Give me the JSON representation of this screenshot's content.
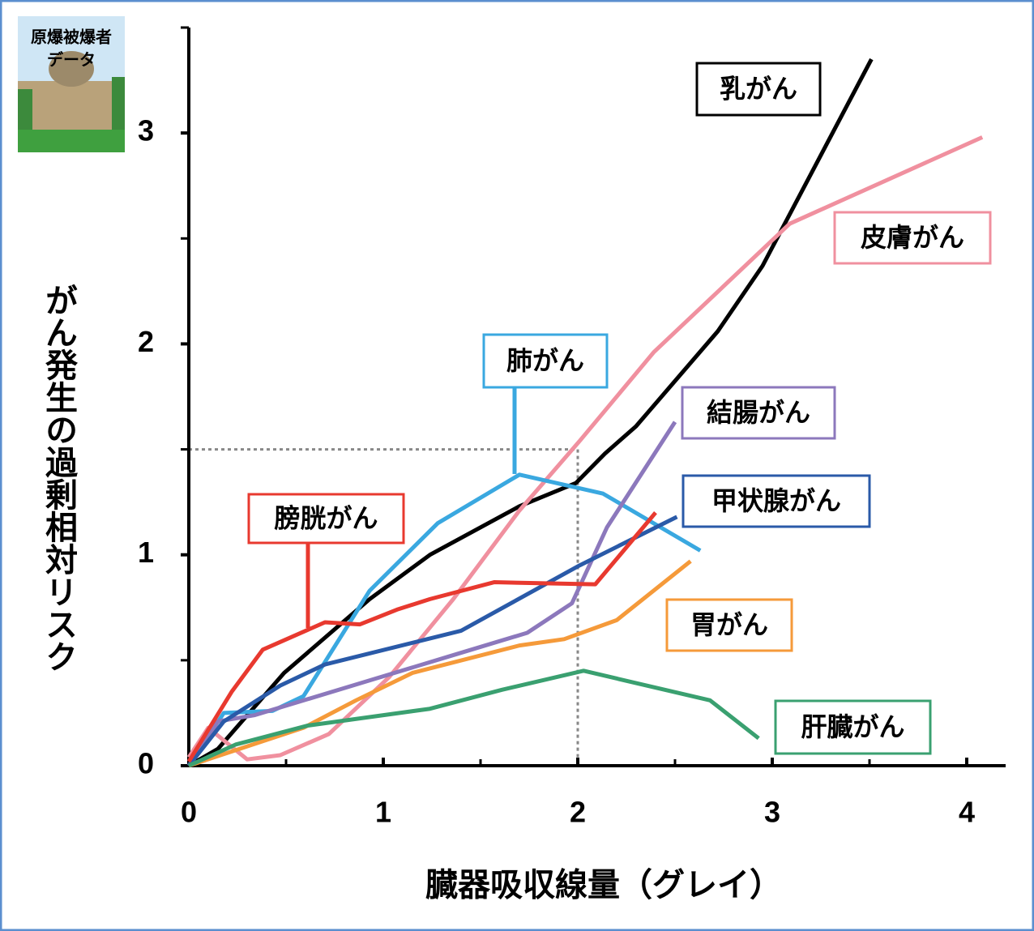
{
  "chart_data": {
    "type": "line",
    "badge": [
      "原爆被爆者",
      "データ"
    ],
    "xlabel": "臓器吸収線量（グレイ）",
    "ylabel": "がん発生の過剰相対リスク",
    "xlim": [
      0,
      4.2
    ],
    "ylim": [
      0,
      3.5
    ],
    "xticks": [
      0,
      1,
      2,
      3,
      4
    ],
    "yticks": [
      0,
      1,
      2,
      3
    ],
    "xminor": [
      0.5,
      1.5,
      2.5,
      3.5
    ],
    "yminor": [
      0.5,
      1.5,
      2.5,
      3.5
    ],
    "reference": {
      "x": 2,
      "y": 1.5
    },
    "series": [
      {
        "name": "乳がん",
        "color": "#000000",
        "x": [
          0,
          0.15,
          0.49,
          0.93,
          1.24,
          1.7,
          1.99,
          2.14,
          2.3,
          2.72,
          2.95,
          3.51
        ],
        "values": [
          0,
          0.08,
          0.44,
          0.79,
          1.0,
          1.23,
          1.34,
          1.48,
          1.61,
          2.06,
          2.37,
          3.35
        ]
      },
      {
        "name": "皮膚がん",
        "color": "#f0909f",
        "x": [
          0,
          0.1,
          0.3,
          0.47,
          0.72,
          1.03,
          1.36,
          1.7,
          2.01,
          2.39,
          3.09,
          4.08
        ],
        "values": [
          0.04,
          0.18,
          0.03,
          0.05,
          0.15,
          0.42,
          0.79,
          1.21,
          1.54,
          1.96,
          2.57,
          2.98
        ]
      },
      {
        "name": "肺がん",
        "color": "#3aa8e0",
        "x": [
          0,
          0.18,
          0.43,
          0.59,
          0.93,
          1.28,
          1.7,
          2.13,
          2.63
        ],
        "values": [
          0,
          0.25,
          0.26,
          0.33,
          0.83,
          1.15,
          1.38,
          1.29,
          1.02
        ]
      },
      {
        "name": "結腸がん",
        "color": "#8c78bc",
        "x": [
          0,
          0.15,
          0.34,
          0.95,
          1.38,
          1.74,
          1.97,
          2.15,
          2.5
        ],
        "values": [
          0,
          0.21,
          0.24,
          0.41,
          0.53,
          0.63,
          0.77,
          1.13,
          1.63
        ]
      },
      {
        "name": "甲状腺がん",
        "color": "#2a5aa8",
        "x": [
          0,
          0.18,
          0.47,
          0.7,
          1.4,
          2.01,
          2.51
        ],
        "values": [
          0,
          0.21,
          0.38,
          0.48,
          0.64,
          0.95,
          1.18
        ]
      },
      {
        "name": "膀胱がん",
        "color": "#e8392f",
        "x": [
          0,
          0.22,
          0.38,
          0.7,
          0.88,
          1.07,
          1.24,
          1.57,
          2.09,
          2.4
        ],
        "values": [
          0.02,
          0.35,
          0.55,
          0.68,
          0.67,
          0.74,
          0.79,
          0.87,
          0.86,
          1.2
        ]
      },
      {
        "name": "胃がん",
        "color": "#f59a3a",
        "x": [
          0,
          0.59,
          0.86,
          1.15,
          1.7,
          1.93,
          2.2,
          2.58
        ],
        "values": [
          0,
          0.18,
          0.31,
          0.44,
          0.57,
          0.6,
          0.69,
          0.97
        ]
      },
      {
        "name": "肝臓がん",
        "color": "#3aa070",
        "x": [
          0,
          0.24,
          0.61,
          1.24,
          1.61,
          2.03,
          2.68,
          2.93
        ],
        "values": [
          0,
          0.1,
          0.19,
          0.27,
          0.36,
          0.45,
          0.31,
          0.13
        ]
      }
    ]
  }
}
